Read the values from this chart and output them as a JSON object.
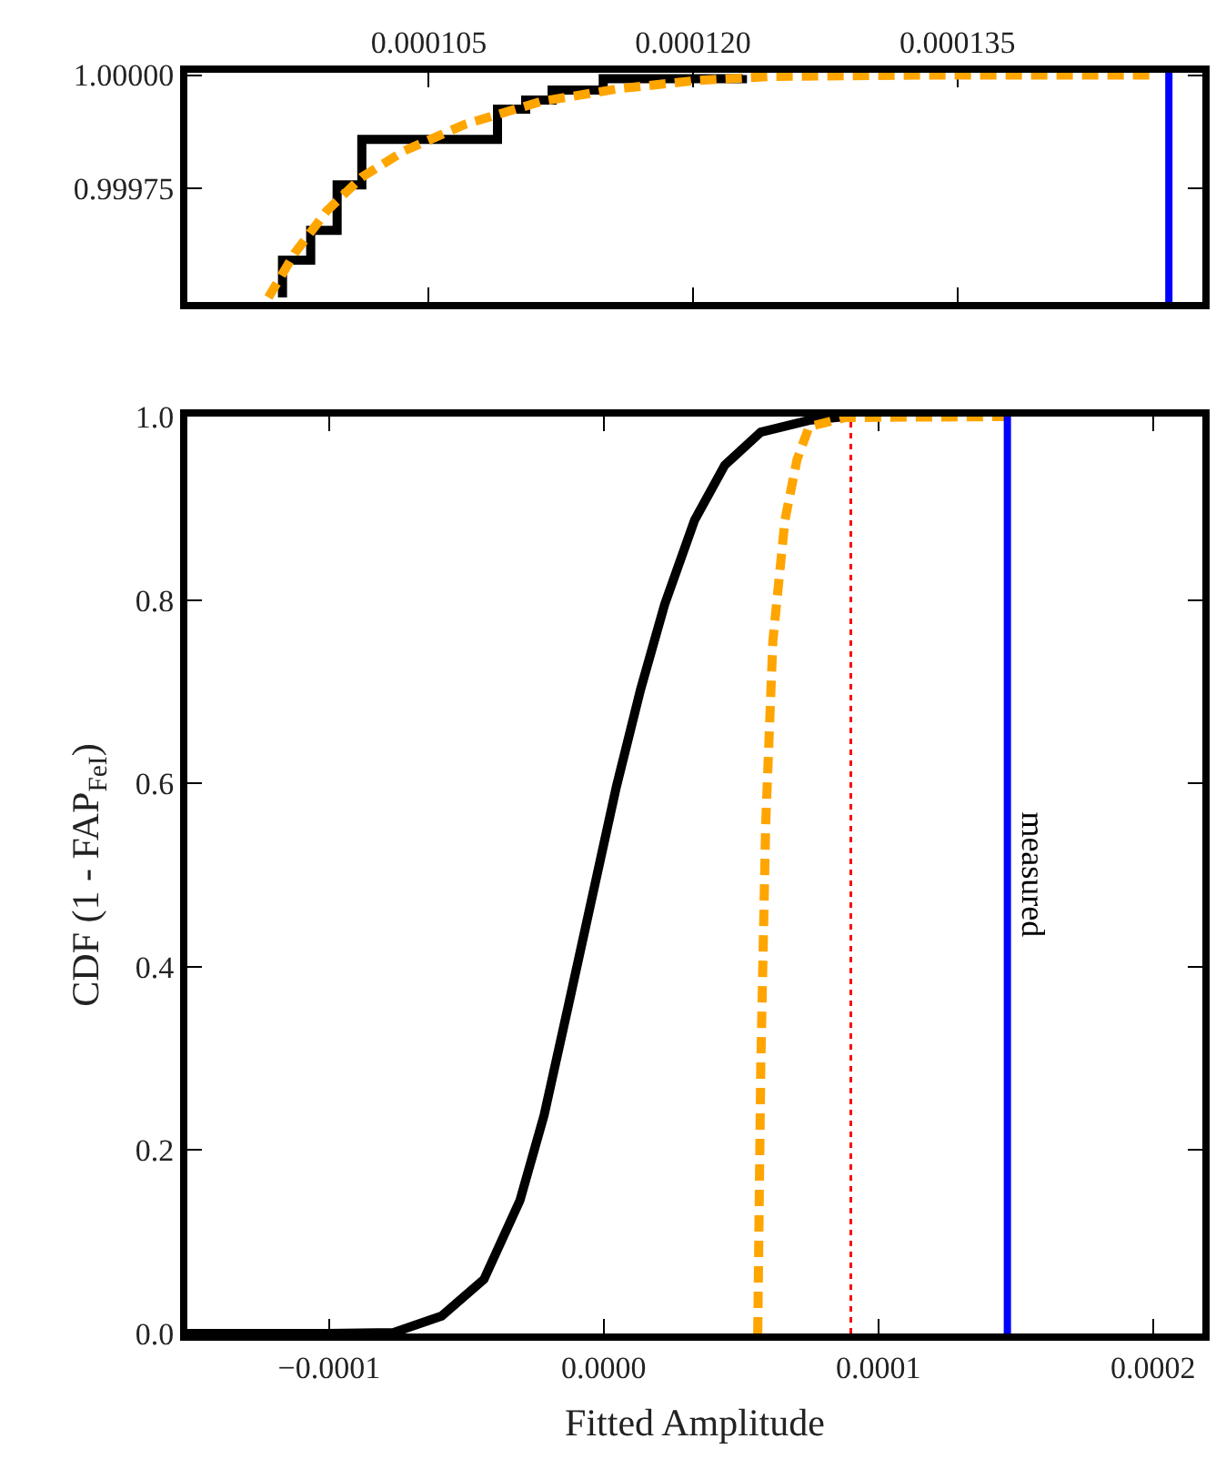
{
  "chart_data": [
    {
      "type": "step",
      "xlim": [
        9.13e-05,
        0.0001489
      ],
      "xticks": [
        0.000105,
        {
          "value": 0.00012,
          "label": "0.000120"
        },
        0.000135
      ],
      "ylim": [
        0.9995,
        1.000005
      ],
      "yticks": [
        {
          "value": 1.0,
          "label": "1.00000"
        },
        {
          "value": 0.99975,
          "label": "0.99975"
        }
      ],
      "series": [
        {
          "color": "#000000",
          "line_style": "solid",
          "x": [
            9.67e-05,
            9.67e-05,
            9.83e-05,
            9.98e-05,
            0.0001012,
            0.0001089,
            0.0001105,
            0.000112,
            0.0001149,
            0.0001228
          ],
          "values": [
            0.99951,
            0.999592,
            0.999658,
            0.999758,
            0.999858,
            0.999925,
            0.999945,
            0.999967,
            0.999992,
            1.0
          ]
        },
        {
          "type": "line",
          "color": "#ffa500",
          "line_style": "dashed",
          "x": [
            9.59e-05,
            9.74e-05,
            9.92e-05,
            0.0001012,
            0.0001036,
            0.0001071,
            0.0001114,
            0.0001158,
            0.0001202,
            0.0001245,
            0.0001333,
            0.0001464
          ],
          "values": [
            0.99951,
            0.999608,
            0.9997,
            0.999775,
            0.999833,
            0.999892,
            0.999942,
            0.99997,
            0.999988,
            0.999997,
            1.0,
            1.0
          ]
        }
      ],
      "ref_lines": [
        {
          "axis": "x",
          "value": 0.000147,
          "color": "#0000ff",
          "line_style": "solid"
        }
      ]
    },
    {
      "type": "line",
      "xlabel": "Fitted Amplitude",
      "ylabel": "CDF (1 - FAP$_{FeI}$)",
      "xlim": [
        -0.0001516,
        0.000218
      ],
      "xticks": [
        {
          "value": -0.0001,
          "label": "−0.0001"
        },
        {
          "value": 0.0,
          "label": "0.0000"
        },
        {
          "value": 0.0001,
          "label": "0.0001"
        },
        {
          "value": 0.0002,
          "label": "0.0002"
        }
      ],
      "ylim": [
        0.0,
        1.0
      ],
      "yticks": [
        {
          "value": 0.0,
          "label": "0.0"
        },
        {
          "value": 0.2,
          "label": "0.2"
        },
        {
          "value": 0.4,
          "label": "0.4"
        },
        {
          "value": 0.6,
          "label": "0.6"
        },
        {
          "value": 0.8,
          "label": "0.8"
        },
        {
          "value": 1.0,
          "label": "1.0"
        }
      ],
      "series": [
        {
          "color": "#000000",
          "line_style": "solid",
          "x": [
            -0.0001516,
            -0.0001007,
            -7.65e-05,
            -5.9e-05,
            -4.36e-05,
            -3.05e-05,
            -2.17e-05,
            -1.29e-05,
            -4.2e-06,
            4.6e-06,
            1.34e-05,
            2.22e-05,
            3.31e-05,
            4.41e-05,
            5.72e-05,
            7.48e-05,
            8.8e-05
          ],
          "values": [
            0.0,
            0.0,
            0.001,
            0.019,
            0.059,
            0.145,
            0.238,
            0.357,
            0.476,
            0.596,
            0.702,
            0.795,
            0.887,
            0.947,
            0.983,
            0.996,
            1.0
          ]
        },
        {
          "color": "#ffa500",
          "line_style": "dashed",
          "x": [
            5.61e-05,
            5.72e-05,
            5.9e-05,
            6.16e-05,
            6.6e-05,
            7.04e-05,
            7.48e-05,
            8.8e-05,
            0.000147
          ],
          "values": [
            0.0,
            0.291,
            0.556,
            0.755,
            0.887,
            0.953,
            0.989,
            0.999,
            1.0
          ]
        }
      ],
      "ref_lines": [
        {
          "axis": "x",
          "value": 9e-05,
          "color": "#ff0000",
          "line_style": "dotted"
        },
        {
          "axis": "x",
          "value": 0.000147,
          "color": "#0000ff",
          "line_style": "solid",
          "label": "measured"
        }
      ]
    }
  ]
}
